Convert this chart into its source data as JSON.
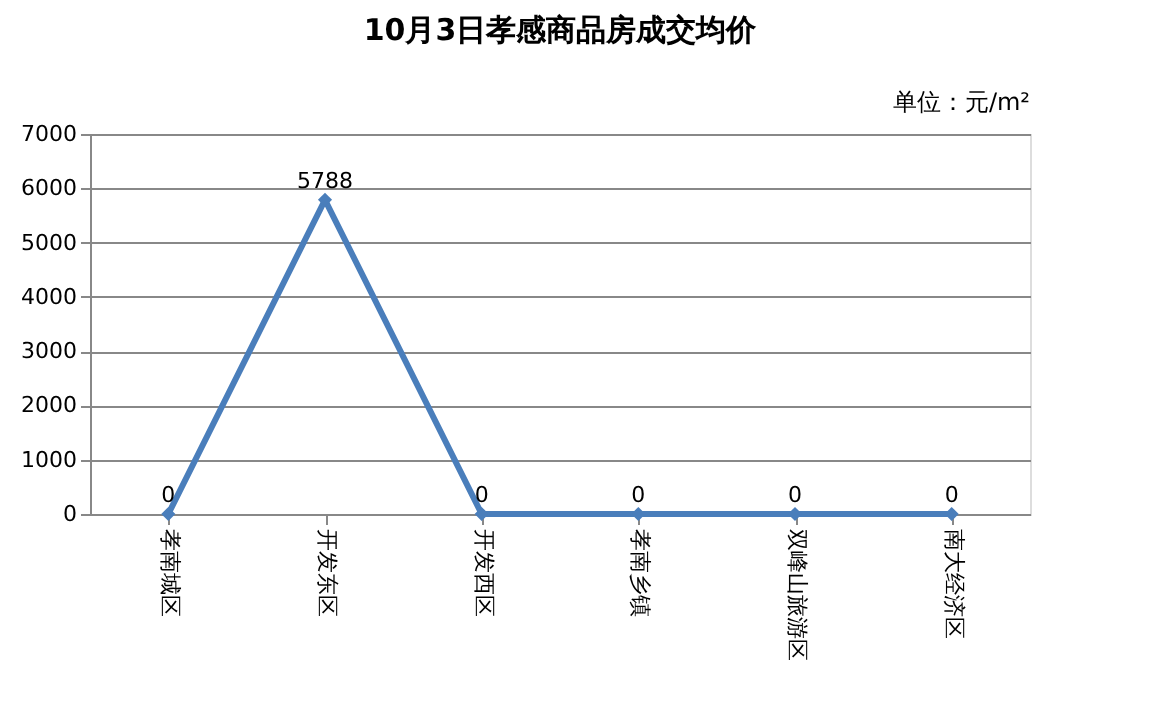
{
  "chart_data": {
    "type": "line",
    "title": "10月3日孝感商品房成交均价",
    "annotations": [
      "单位：元/m²"
    ],
    "categories": [
      "孝南城区",
      "开发东区",
      "开发西区",
      "孝南乡镇",
      "双峰山旅游区",
      "南大经济区"
    ],
    "series": [
      {
        "color": "#4a7ebb",
        "values": [
          0,
          5788,
          0,
          0,
          0,
          0
        ]
      }
    ],
    "ylim": [
      0,
      7000
    ],
    "yticks": [
      0,
      1000,
      2000,
      3000,
      4000,
      5000,
      6000,
      7000
    ],
    "grid": "y",
    "legend": false,
    "marker": "diamond",
    "line_style": "solid",
    "data_labels": true
  }
}
